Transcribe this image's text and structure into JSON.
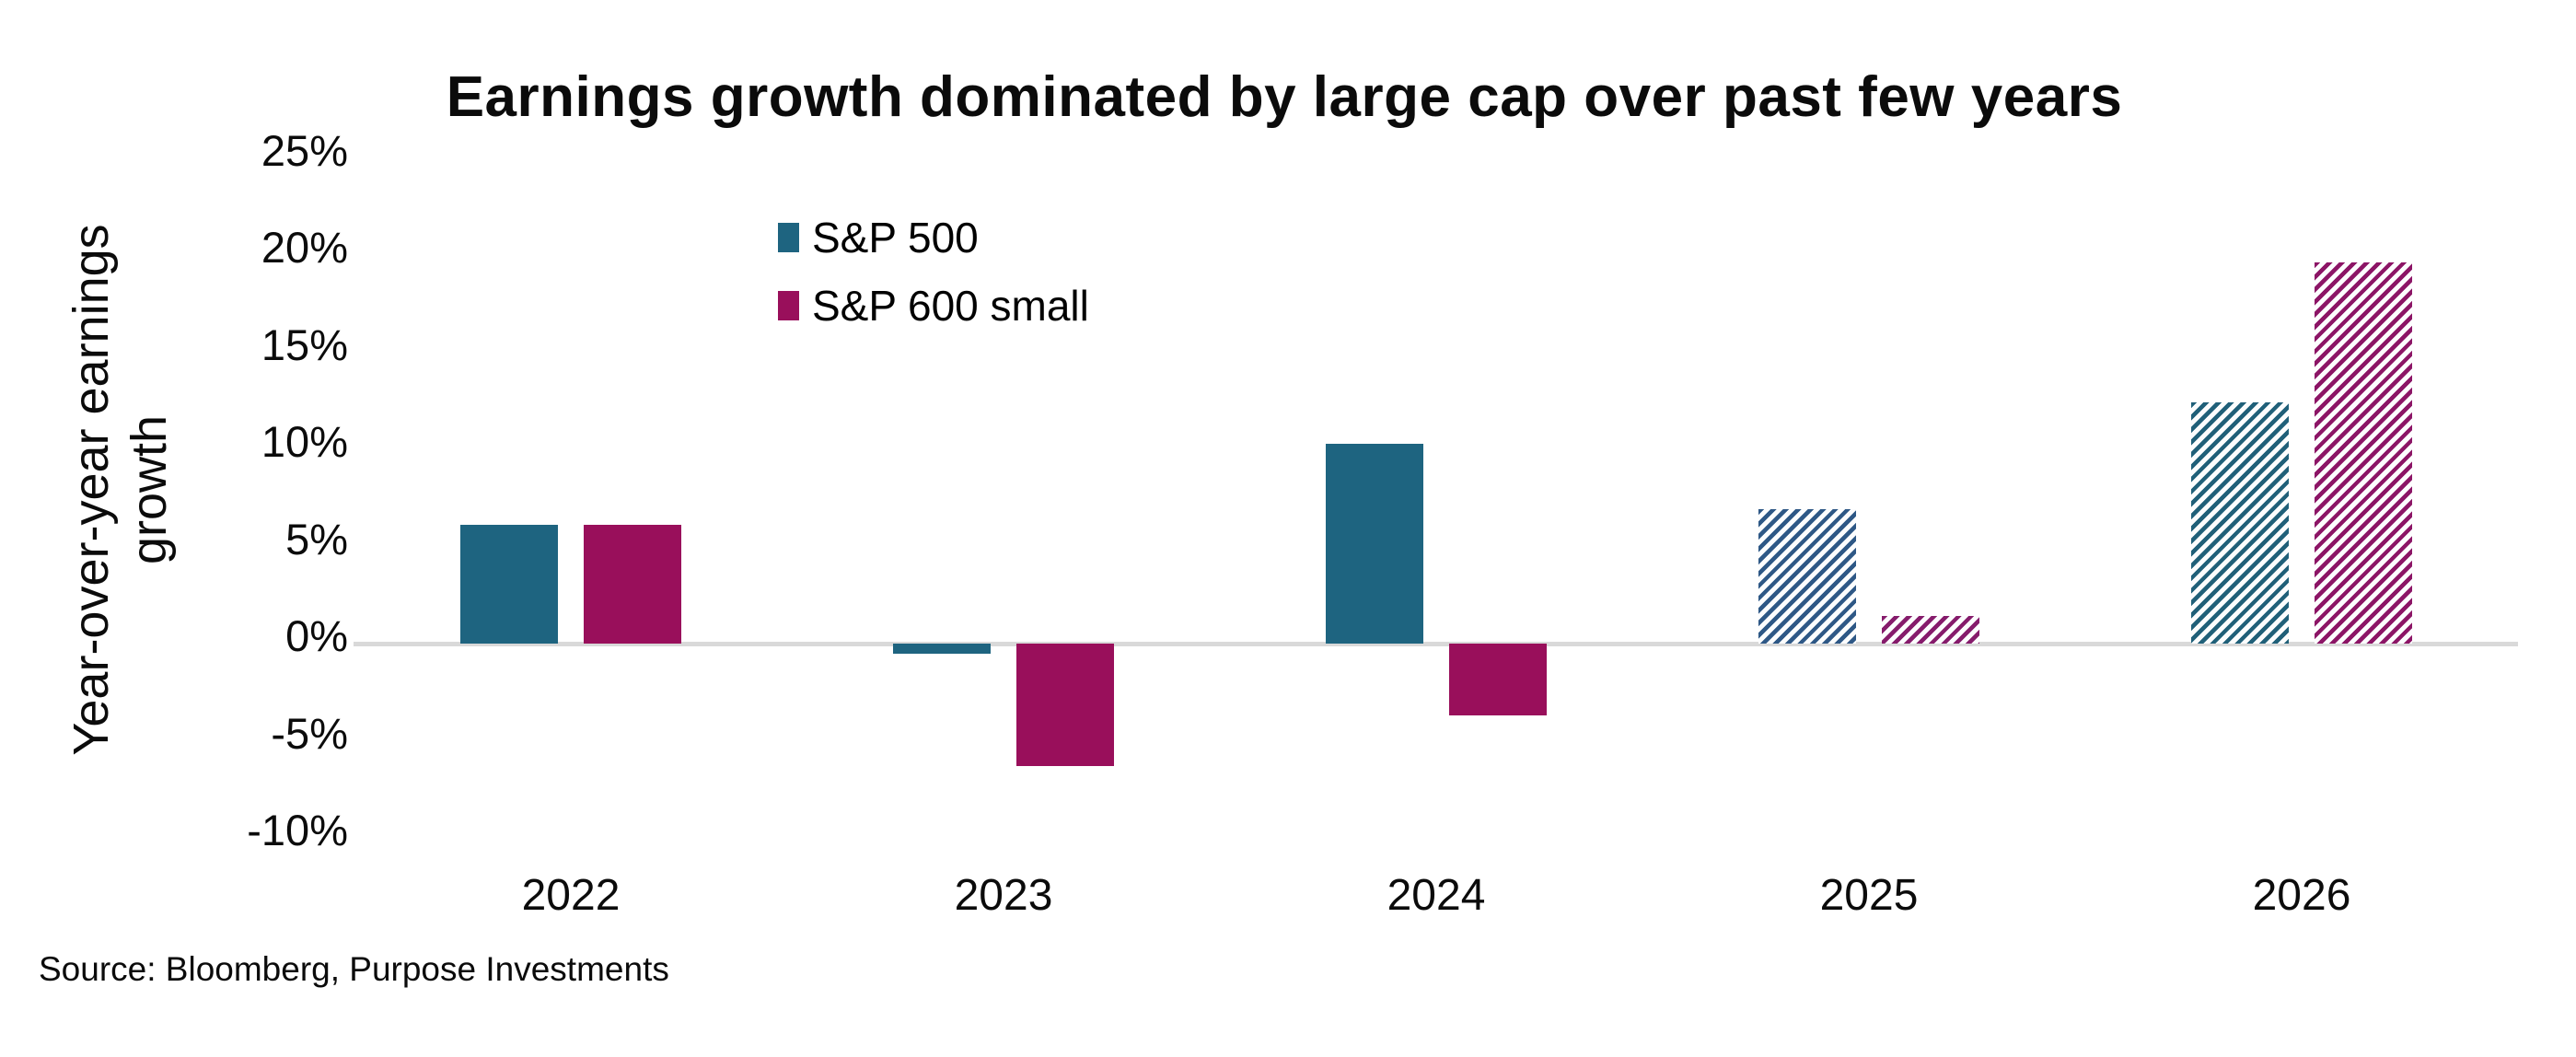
{
  "chart_data": {
    "type": "bar",
    "title": "Earnings growth dominated by large cap over past few years",
    "ylabel": "Year-over-year earnings growth",
    "categories": [
      "2022",
      "2023",
      "2024",
      "2025",
      "2026"
    ],
    "series": [
      {
        "name": "S&P 500",
        "color": "#1E6480",
        "values": [
          6.1,
          -0.5,
          10.3,
          6.9,
          12.4
        ],
        "bar_styles": [
          "solid",
          "solid",
          "solid",
          "hatched",
          "hatched"
        ],
        "hatch_colors": [
          null,
          null,
          null,
          "#2E5886",
          "#206079"
        ]
      },
      {
        "name": "S&P 600 small",
        "color": "#990F5B",
        "values": [
          6.1,
          -6.3,
          -3.7,
          1.4,
          19.6
        ],
        "bar_styles": [
          "solid",
          "solid",
          "solid",
          "hatched",
          "hatched"
        ],
        "hatch_colors": [
          null,
          null,
          null,
          "#861C6C",
          "#8C1566"
        ]
      }
    ],
    "y_ticks": [
      {
        "label": "25%",
        "value": 25
      },
      {
        "label": "20%",
        "value": 20
      },
      {
        "label": "15%",
        "value": 15
      },
      {
        "label": "10%",
        "value": 10
      },
      {
        "label": "5%",
        "value": 5
      },
      {
        "label": "0%",
        "value": 0
      },
      {
        "label": "-5%",
        "value": -5
      },
      {
        "label": "-10%",
        "value": -10
      }
    ],
    "ylim": [
      -10,
      25
    ],
    "grid": false,
    "legend_position": "upper-left-of-plot"
  },
  "colors": {
    "axis_line": "#D9D9D9",
    "hatch_background": "#FCFDFE"
  },
  "source": {
    "text": "Source: Bloomberg, Purpose Investments"
  }
}
